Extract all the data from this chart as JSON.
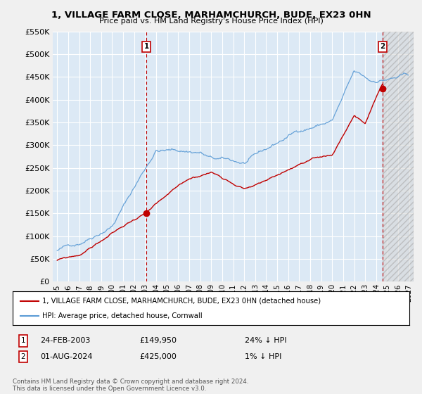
{
  "title": "1, VILLAGE FARM CLOSE, MARHAMCHURCH, BUDE, EX23 0HN",
  "subtitle": "Price paid vs. HM Land Registry's House Price Index (HPI)",
  "hpi_color": "#5b9bd5",
  "price_color": "#c00000",
  "sale1_year": 2003.12,
  "sale1_price": 149950,
  "sale2_year": 2024.58,
  "sale2_price": 425000,
  "ylim": [
    0,
    550000
  ],
  "yticks": [
    0,
    50000,
    100000,
    150000,
    200000,
    250000,
    300000,
    350000,
    400000,
    450000,
    500000,
    550000
  ],
  "xlim_start": 1994.6,
  "xlim_end": 2027.4,
  "legend_label1": "1, VILLAGE FARM CLOSE, MARHAMCHURCH, BUDE, EX23 0HN (detached house)",
  "legend_label2": "HPI: Average price, detached house, Cornwall",
  "sale1_date_str": "24-FEB-2003",
  "sale1_price_str": "£149,950",
  "sale1_hpi_str": "24% ↓ HPI",
  "sale2_date_str": "01-AUG-2024",
  "sale2_price_str": "£425,000",
  "sale2_hpi_str": "1% ↓ HPI",
  "footer": "Contains HM Land Registry data © Crown copyright and database right 2024.\nThis data is licensed under the Open Government Licence v3.0.",
  "plot_bg": "#dce9f5",
  "fig_bg": "#f0f0f0",
  "grid_color": "#ffffff",
  "vline_color": "#c00000",
  "hatch_color": "#c8c8c8"
}
